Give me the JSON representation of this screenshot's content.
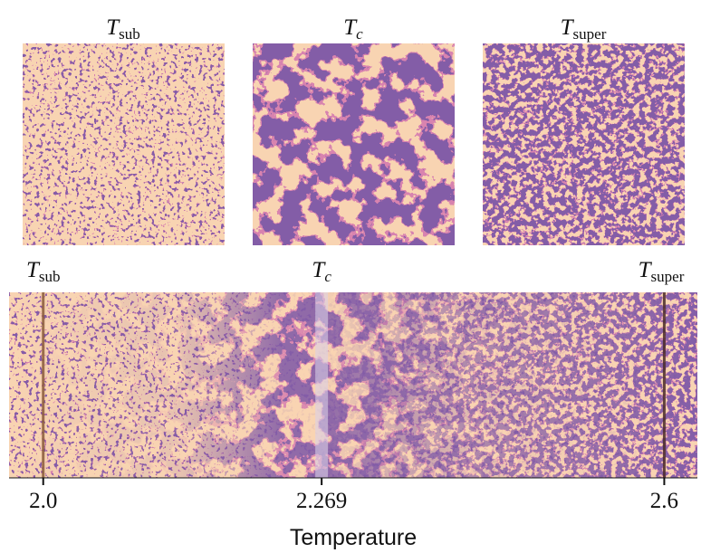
{
  "chart_data": {
    "type": "strip",
    "panels": [
      {
        "base": "T",
        "sub": "sub"
      },
      {
        "base": "T",
        "sub": "c"
      },
      {
        "base": "T",
        "sub": "super"
      }
    ],
    "xlabel": "Temperature",
    "xlim": [
      1.967,
      2.632
    ],
    "xticks": [
      {
        "value": 2.0,
        "label": "2.0"
      },
      2.269,
      2.6
    ],
    "markers": [
      {
        "base": "T",
        "sub": "sub",
        "x": 2.0,
        "color": "#8a5a3a"
      },
      {
        "base": "T",
        "sub": "c",
        "x": 2.269,
        "color": "#d8cfe6"
      },
      {
        "base": "T",
        "sub": "super",
        "x": 2.6,
        "color": "#4a2a28"
      }
    ]
  }
}
